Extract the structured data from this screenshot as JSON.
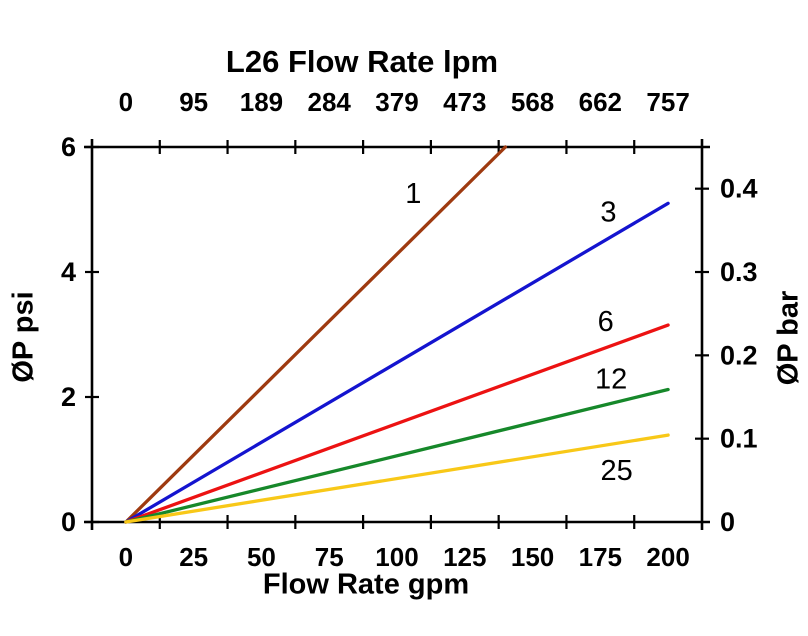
{
  "chart_data": {
    "type": "line",
    "title": "L26 Flow Rate lpm",
    "x_top": {
      "unit": "lpm",
      "tick_labels": [
        "0",
        "95",
        "189",
        "284",
        "379",
        "473",
        "568",
        "662",
        "757"
      ]
    },
    "x_bottom": {
      "label": "Flow Rate gpm",
      "unit": "gpm",
      "tick_labels": [
        "0",
        "25",
        "50",
        "75",
        "100",
        "125",
        "150",
        "175",
        "200"
      ],
      "range": [
        0,
        200
      ]
    },
    "y_left": {
      "label": "ØP psi",
      "tick_labels": [
        "0",
        "2",
        "4",
        "6"
      ],
      "range": [
        0,
        6
      ]
    },
    "y_right": {
      "label": "ØP bar",
      "tick_labels": [
        "0",
        "0.1",
        "0.2",
        "0.3",
        "0.4"
      ],
      "range": [
        0,
        0.45
      ]
    },
    "grid": false,
    "legend": "labels-on-lines",
    "axis_color": "#000000",
    "background": "#ffffff",
    "series": [
      {
        "name": "1",
        "color": "#9e3a10",
        "points": [
          [
            0,
            0
          ],
          [
            140,
            6.0
          ]
        ]
      },
      {
        "name": "3",
        "color": "#1414cf",
        "points": [
          [
            0,
            0
          ],
          [
            200,
            5.1
          ]
        ]
      },
      {
        "name": "6",
        "color": "#ec1212",
        "points": [
          [
            0,
            0
          ],
          [
            200,
            3.15
          ]
        ]
      },
      {
        "name": "12",
        "color": "#16882a",
        "points": [
          [
            0,
            0
          ],
          [
            200,
            2.12
          ]
        ]
      },
      {
        "name": "25",
        "color": "#f8c818",
        "points": [
          [
            0,
            0
          ],
          [
            200,
            1.39
          ]
        ]
      }
    ],
    "series_labels": [
      {
        "text": "1",
        "gpm": 106,
        "psi": 5.25
      },
      {
        "text": "3",
        "gpm": 178,
        "psi": 4.95
      },
      {
        "text": "6",
        "gpm": 177,
        "psi": 3.2
      },
      {
        "text": "12",
        "gpm": 179,
        "psi": 2.28
      },
      {
        "text": "25",
        "gpm": 181,
        "psi": 0.82
      }
    ]
  }
}
